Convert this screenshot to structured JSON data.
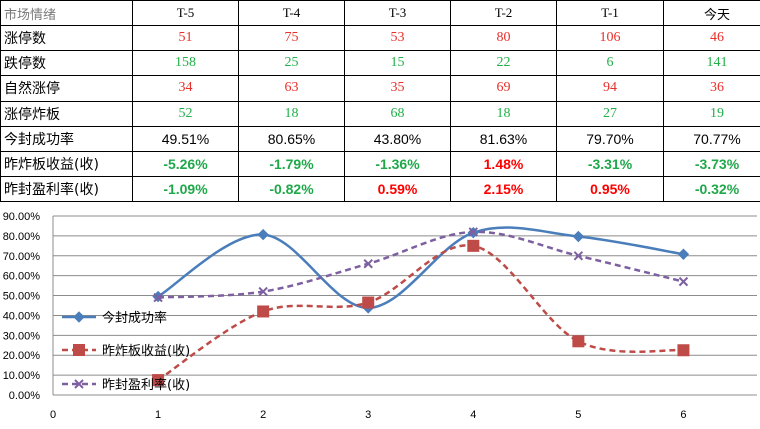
{
  "table": {
    "header": [
      "市场情绪",
      "T-5",
      "T-4",
      "T-3",
      "T-2",
      "T-1",
      "今天"
    ],
    "rows": [
      {
        "label": "涨停数",
        "values": [
          "51",
          "75",
          "53",
          "80",
          "106",
          "46"
        ],
        "styles": [
          "red",
          "red",
          "red",
          "red",
          "red",
          "red"
        ]
      },
      {
        "label": "跌停数",
        "values": [
          "158",
          "25",
          "15",
          "22",
          "6",
          "141"
        ],
        "styles": [
          "green",
          "green",
          "green",
          "green",
          "green",
          "green"
        ]
      },
      {
        "label": "自然涨停",
        "values": [
          "34",
          "63",
          "35",
          "69",
          "94",
          "36"
        ],
        "styles": [
          "red",
          "red",
          "red",
          "red",
          "red",
          "red"
        ]
      },
      {
        "label": "涨停炸板",
        "values": [
          "52",
          "18",
          "68",
          "18",
          "27",
          "19"
        ],
        "styles": [
          "green",
          "green",
          "green",
          "green",
          "green",
          "green"
        ]
      },
      {
        "label": "今封成功率",
        "values": [
          "49.51%",
          "80.65%",
          "43.80%",
          "81.63%",
          "79.70%",
          "70.77%"
        ],
        "styles": [
          "black",
          "black",
          "black",
          "black",
          "black",
          "black"
        ]
      },
      {
        "label": "昨炸板收益(收)",
        "values": [
          "-5.26%",
          "-1.79%",
          "-1.36%",
          "1.48%",
          "-3.31%",
          "-3.73%"
        ],
        "styles": [
          "bgreen",
          "bgreen",
          "bgreen",
          "bred",
          "bgreen",
          "bgreen"
        ]
      },
      {
        "label": "昨封盈利率(收)",
        "values": [
          "-1.09%",
          "-0.82%",
          "0.59%",
          "2.15%",
          "0.95%",
          "-0.32%"
        ],
        "styles": [
          "bgreen",
          "bgreen",
          "bred",
          "bred",
          "bred",
          "bgreen"
        ]
      }
    ]
  },
  "chart_data": {
    "type": "line",
    "x": [
      1,
      2,
      3,
      4,
      5,
      6
    ],
    "xticks": [
      "0",
      "1",
      "2",
      "3",
      "4",
      "5",
      "6"
    ],
    "xlim": [
      0,
      6.7
    ],
    "ylim": [
      0,
      90
    ],
    "yticks": [
      "0.00%",
      "10.00%",
      "20.00%",
      "30.00%",
      "40.00%",
      "50.00%",
      "60.00%",
      "70.00%",
      "80.00%",
      "90.00%"
    ],
    "series": [
      {
        "name": "今封成功率",
        "values": [
          49.51,
          80.65,
          43.8,
          81.63,
          79.7,
          70.77
        ],
        "color": "#4a7ebb",
        "marker": "diamond",
        "dash": "solid"
      },
      {
        "name": "昨炸板收益(收)",
        "values": [
          7.5,
          42.0,
          46.5,
          75.0,
          27.0,
          22.5
        ],
        "color": "#be4b48",
        "marker": "square",
        "dash": "dashed"
      },
      {
        "name": "昨封盈利率(收)",
        "values": [
          49.0,
          52.0,
          66.0,
          82.0,
          70.0,
          57.0
        ],
        "color": "#7d60a0",
        "marker": "x",
        "dash": "dashed"
      }
    ],
    "legend_position": "left"
  }
}
